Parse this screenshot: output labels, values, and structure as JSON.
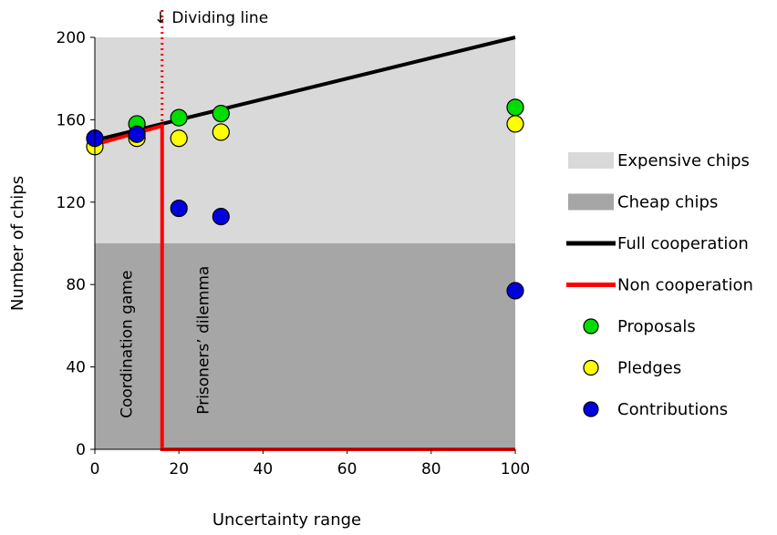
{
  "chart_data": {
    "type": "scatter",
    "title": "",
    "xlabel": "Uncertainty range",
    "ylabel": "Number of chips",
    "xlim": [
      0,
      100
    ],
    "ylim": [
      0,
      200
    ],
    "x_ticks": [
      "0",
      "20",
      "40",
      "60",
      "80",
      "100"
    ],
    "y_ticks": [
      "0",
      "40",
      "80",
      "120",
      "160",
      "200"
    ],
    "grid": false,
    "legend_position": "right",
    "regions": [
      {
        "name": "Expensive chips",
        "y_range": [
          100,
          200
        ],
        "color": "#d9d9d9"
      },
      {
        "name": "Cheap chips",
        "y_range": [
          0,
          100
        ],
        "color": "#a6a6a6"
      }
    ],
    "lines": [
      {
        "name": "Full cooperation",
        "color": "#000000",
        "points": [
          {
            "x": 0,
            "y": 150
          },
          {
            "x": 100,
            "y": 200
          }
        ]
      },
      {
        "name": "Non cooperation",
        "color": "#ff0000",
        "points": [
          {
            "x": 0,
            "y": 148
          },
          {
            "x": 16,
            "y": 157
          },
          {
            "x": 16,
            "y": 0
          },
          {
            "x": 100,
            "y": 0
          }
        ]
      }
    ],
    "series": [
      {
        "name": "Proposals",
        "color": "#00dd00",
        "points": [
          {
            "x": 0,
            "y": 151
          },
          {
            "x": 10,
            "y": 158
          },
          {
            "x": 20,
            "y": 161
          },
          {
            "x": 30,
            "y": 163
          },
          {
            "x": 100,
            "y": 166
          }
        ]
      },
      {
        "name": "Pledges",
        "color": "#ffff00",
        "points": [
          {
            "x": 0,
            "y": 147
          },
          {
            "x": 10,
            "y": 151
          },
          {
            "x": 20,
            "y": 151
          },
          {
            "x": 30,
            "y": 154
          },
          {
            "x": 100,
            "y": 158
          }
        ]
      },
      {
        "name": "Contributions",
        "color": "#0000dd",
        "points": [
          {
            "x": 0,
            "y": 151
          },
          {
            "x": 10,
            "y": 153
          },
          {
            "x": 20,
            "y": 117
          },
          {
            "x": 30,
            "y": 113
          },
          {
            "x": 100,
            "y": 77
          }
        ]
      }
    ],
    "dividing_line": {
      "x": 16,
      "label": "↓ Dividing line",
      "color": "#ff0000"
    },
    "region_labels": [
      "Coordination game",
      "Prisoners’ dilemma"
    ]
  }
}
